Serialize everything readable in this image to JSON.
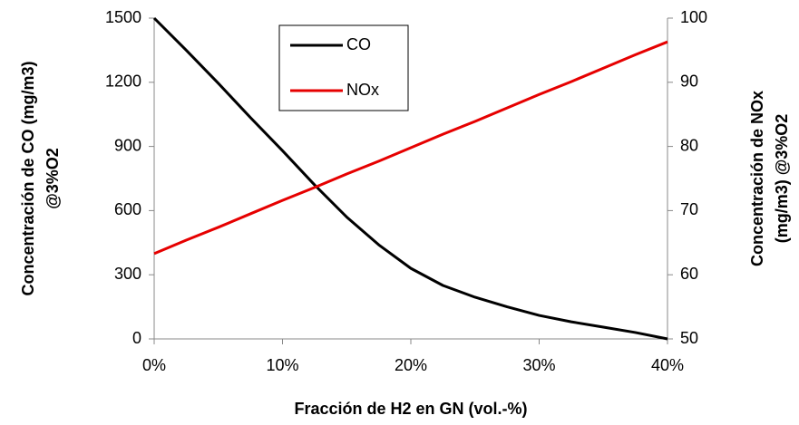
{
  "chart_data": {
    "type": "line",
    "xlabel": "Fracción de H2 en GN (vol.-%)",
    "ylabel": [
      "Concentración de CO (mg/m3)",
      "@3%O2"
    ],
    "y2label": [
      "Concentración de NOx",
      "(mg/m3) @3%O2"
    ],
    "x": [
      0,
      2.5,
      5,
      7.5,
      10,
      12.5,
      15,
      17.5,
      20,
      22.5,
      25,
      27.5,
      30,
      32.5,
      35,
      37.5,
      40
    ],
    "series": [
      {
        "name": "CO",
        "color": "#000000",
        "values": [
          1500,
          1350,
          1195,
          1035,
          880,
          720,
          570,
          440,
          330,
          250,
          195,
          150,
          110,
          80,
          55,
          30,
          0
        ]
      },
      {
        "name": "NOx",
        "color": "#e60000",
        "axis": "y2",
        "values": [
          63.3,
          65.4,
          67.4,
          69.5,
          71.6,
          73.6,
          75.7,
          77.7,
          79.8,
          81.9,
          83.9,
          86.0,
          88.1,
          90.1,
          92.2,
          94.3,
          96.3
        ]
      }
    ],
    "xlim": [
      0,
      40
    ],
    "xticks": [
      {
        "value": 0,
        "label": "0%"
      },
      {
        "value": 10,
        "label": "10%"
      },
      {
        "value": 20,
        "label": "20%"
      },
      {
        "value": 30,
        "label": "30%"
      },
      {
        "value": 40,
        "label": "40%"
      }
    ],
    "ylim": [
      0,
      1500
    ],
    "yticks": [
      0,
      300,
      600,
      900,
      1200,
      1500
    ],
    "y2lim": [
      50,
      100
    ],
    "y2ticks": [
      50,
      60,
      70,
      80,
      90,
      100
    ],
    "legend": "top"
  }
}
